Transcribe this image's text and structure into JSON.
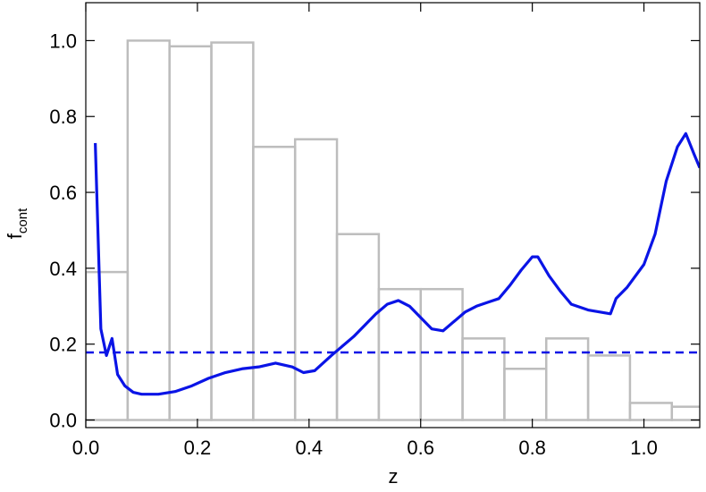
{
  "chart_data": {
    "type": "histogram",
    "bins": [
      0,
      0.075,
      0.15,
      0.225,
      0.3,
      0.375,
      0.45,
      0.525,
      0.6,
      0.675,
      0.75,
      0.825,
      0.9,
      0.975,
      1.05,
      1.125
    ],
    "values": [
      0.39,
      1.0,
      0.985,
      0.995,
      0.72,
      0.74,
      0.49,
      0.345,
      0.345,
      0.215,
      0.135,
      0.215,
      0.17,
      0.045,
      0.035
    ],
    "color": "#bdbdbd",
    "line": {
      "color": "#0a14e6",
      "x": [
        0.017,
        0.027,
        0.037,
        0.047,
        0.057,
        0.07,
        0.085,
        0.1,
        0.13,
        0.16,
        0.19,
        0.22,
        0.25,
        0.28,
        0.31,
        0.34,
        0.37,
        0.39,
        0.41,
        0.44,
        0.48,
        0.52,
        0.54,
        0.56,
        0.58,
        0.6,
        0.62,
        0.64,
        0.66,
        0.68,
        0.7,
        0.72,
        0.74,
        0.76,
        0.78,
        0.8,
        0.81,
        0.83,
        0.85,
        0.87,
        0.9,
        0.92,
        0.94,
        0.95,
        0.97,
        1.0,
        1.02,
        1.04,
        1.06,
        1.075,
        1.09,
        1.1
      ],
      "values": [
        0.73,
        0.24,
        0.17,
        0.215,
        0.12,
        0.09,
        0.073,
        0.068,
        0.068,
        0.075,
        0.09,
        0.11,
        0.125,
        0.135,
        0.14,
        0.15,
        0.14,
        0.125,
        0.13,
        0.17,
        0.22,
        0.28,
        0.305,
        0.315,
        0.3,
        0.27,
        0.24,
        0.235,
        0.26,
        0.285,
        0.3,
        0.31,
        0.32,
        0.355,
        0.395,
        0.43,
        0.43,
        0.38,
        0.34,
        0.305,
        0.29,
        0.285,
        0.28,
        0.32,
        0.35,
        0.41,
        0.49,
        0.63,
        0.72,
        0.755,
        0.7,
        0.665
      ]
    },
    "reference": {
      "value": 0.178,
      "color": "#0a14e6",
      "style": "dashed"
    },
    "xlabel": "z",
    "ylabel": "f",
    "ylabel_sub": "cont",
    "xlim": [
      0,
      1.1
    ],
    "ylim": [
      -0.02,
      1.1
    ],
    "xticks": [
      {
        "value": 0,
        "label": "0.0"
      },
      {
        "value": 0.2,
        "label": "0.2"
      },
      {
        "value": 0.4,
        "label": "0.4"
      },
      {
        "value": 0.6,
        "label": "0.6"
      },
      {
        "value": 0.8,
        "label": "0.8"
      },
      {
        "value": 1.0,
        "label": "1.0"
      }
    ],
    "yticks": [
      {
        "value": 0,
        "label": "0.0"
      },
      {
        "value": 0.2,
        "label": "0.2"
      },
      {
        "value": 0.4,
        "label": "0.4"
      },
      {
        "value": 0.6,
        "label": "0.6"
      },
      {
        "value": 0.8,
        "label": "0.8"
      },
      {
        "value": 1.0,
        "label": "1.0"
      }
    ]
  }
}
